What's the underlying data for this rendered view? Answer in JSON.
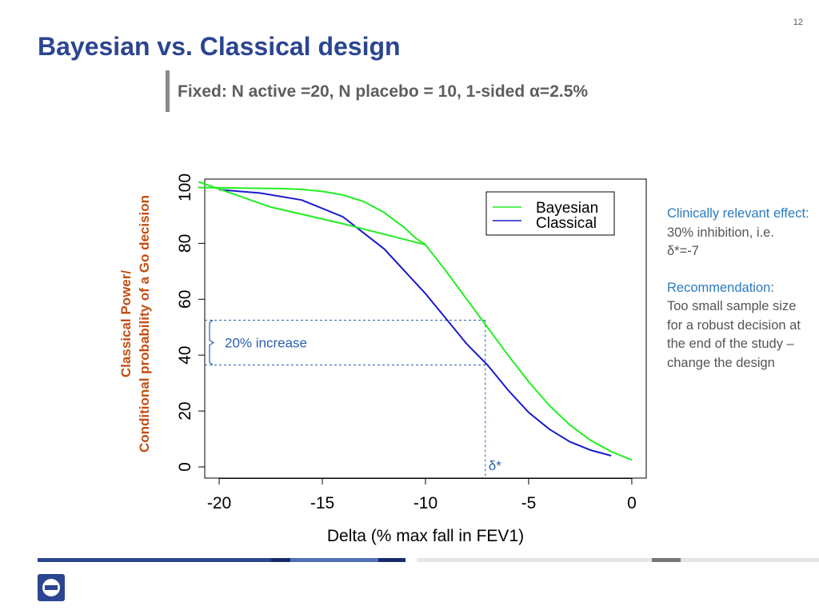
{
  "page_number": "12",
  "title": "Bayesian vs. Classical design",
  "subtitle": "Fixed: N active =20, N placebo = 10, 1-sided α=2.5%",
  "colors": {
    "title": "#2b4590",
    "bayesian": "#22ee22",
    "classical": "#1a1acc",
    "annotation": "#2a5fb0",
    "note_accent": "#2a7bbf"
  },
  "side_notes": {
    "effect_heading": "Clinically relevant effect:",
    "effect_text_1": "30% inhibition, i.e.",
    "effect_text_2": "δ*=-7",
    "recommendation_heading": "Recommendation",
    "recommendation_colon": ":",
    "recommendation_text": "Too small sample size for a robust decision at the end of the study – change the design"
  },
  "chart_data": {
    "type": "line",
    "xlabel": "Delta (% max fall in FEV1)",
    "ylabel_line1": "Classical Power/",
    "ylabel_line2": "Conditional probability of a Go decision",
    "xlim": [
      -20.7,
      0.7
    ],
    "ylim": [
      -4,
      103
    ],
    "xticks": [
      -20,
      -15,
      -10,
      -5,
      0
    ],
    "yticks": [
      0,
      20,
      40,
      60,
      80,
      100
    ],
    "legend_position": "top-right",
    "series": [
      {
        "name": "Bayesian",
        "color": "#22ee22",
        "x": [
          -21,
          -17,
          -16,
          -15,
          -14,
          -13,
          -12,
          -11,
          -10.5,
          -10,
          -9,
          -8,
          -7,
          -6,
          -5,
          -4,
          -3,
          -2,
          -1,
          0
        ],
        "y": [
          100,
          99.6,
          99.3,
          98.6,
          97.3,
          95,
          91,
          85.5,
          82,
          79.5,
          70,
          60,
          50,
          40,
          30.5,
          22,
          15,
          9.5,
          5.5,
          2.5
        ]
      },
      {
        "name": "Classical",
        "color": "#1a1acc",
        "x": [
          -20,
          -18,
          -16,
          -14,
          -12,
          -10,
          -9,
          -8,
          -7,
          -6,
          -5,
          -4,
          -3,
          -2,
          -1
        ],
        "y": [
          99.2,
          98,
          95.5,
          89.5,
          78,
          62,
          53,
          44,
          36.5,
          27.5,
          19.5,
          13.5,
          9,
          6,
          4
        ]
      },
      {
        "name": "",
        "color": "#22ee22",
        "x": [
          -21,
          -17.5,
          -14,
          -10
        ],
        "y": [
          102,
          93,
          87,
          79.5
        ]
      }
    ],
    "annotations": {
      "delta_star_x": -7.1,
      "delta_star_label": "δ*",
      "bayes_level": 52.5,
      "classical_level": 36.5,
      "increase_label": "20% increase"
    }
  }
}
